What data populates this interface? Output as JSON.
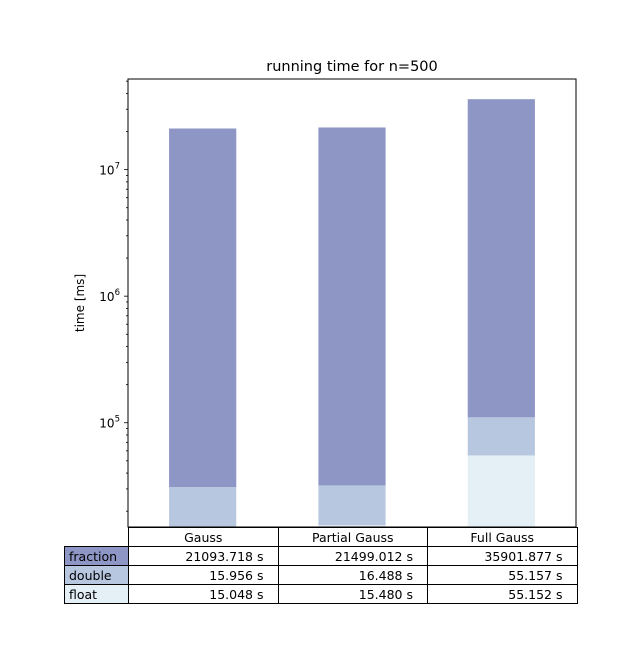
{
  "chart_data": {
    "type": "bar",
    "stacked": true,
    "title": "running time for n=500",
    "ylabel": "time [ms]",
    "xlabel": "",
    "yscale": "log",
    "ylim": [
      15000,
      52000000
    ],
    "categories": [
      "Gauss",
      "Partial Gauss",
      "Full Gauss"
    ],
    "yticks": [
      {
        "value": 100000,
        "base": "10",
        "exp": "5"
      },
      {
        "value": 1000000,
        "base": "10",
        "exp": "6"
      },
      {
        "value": 10000000,
        "base": "10",
        "exp": "7"
      }
    ],
    "series": [
      {
        "name": "float",
        "color": "#e4eff6",
        "values_ms": [
          15048,
          15480,
          55152
        ],
        "labels": [
          "15.048 s",
          "15.480 s",
          "55.152 s"
        ]
      },
      {
        "name": "double",
        "color": "#b7c7e0",
        "values_ms": [
          15956,
          16488,
          55157
        ],
        "labels": [
          "15.956 s",
          "16.488 s",
          "55.157 s"
        ]
      },
      {
        "name": "fraction",
        "color": "#8e96c6",
        "values_ms": [
          21093718,
          21499012,
          35901877
        ],
        "labels": [
          "21093.718 s",
          "21499.012 s",
          "35901.877 s"
        ]
      }
    ],
    "table_row_order": [
      "fraction",
      "double",
      "float"
    ],
    "grid": false,
    "legend": "table"
  }
}
